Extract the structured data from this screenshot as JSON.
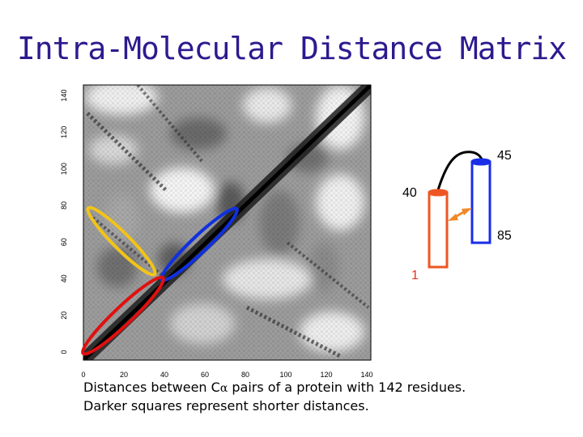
{
  "title": "Intra-Molecular Distance Matrix",
  "matrix": {
    "residues": 142,
    "x_ticks": [
      "0",
      "20",
      "40",
      "60",
      "80",
      "100",
      "120",
      "140"
    ],
    "y_ticks": [
      "0",
      "20",
      "40",
      "60",
      "80",
      "100",
      "120",
      "140"
    ],
    "highlight_colors": {
      "yellow": "#f2c418",
      "blue": "#1030e0",
      "red": "#e01010"
    }
  },
  "helix_diagram": {
    "label_top": "45",
    "label_mid_left": "40",
    "label_right": "85",
    "label_bottom": "1",
    "helix_a_color": "#ee5522",
    "helix_b_color": "#1a2ee8",
    "contact_arrow_color": "#f08a2a"
  },
  "caption": {
    "line1_pre": "Distances between C",
    "line1_alpha": "α",
    "line1_post": " pairs of a protein with 142 residues.",
    "line2": "Darker squares represent shorter distances."
  }
}
